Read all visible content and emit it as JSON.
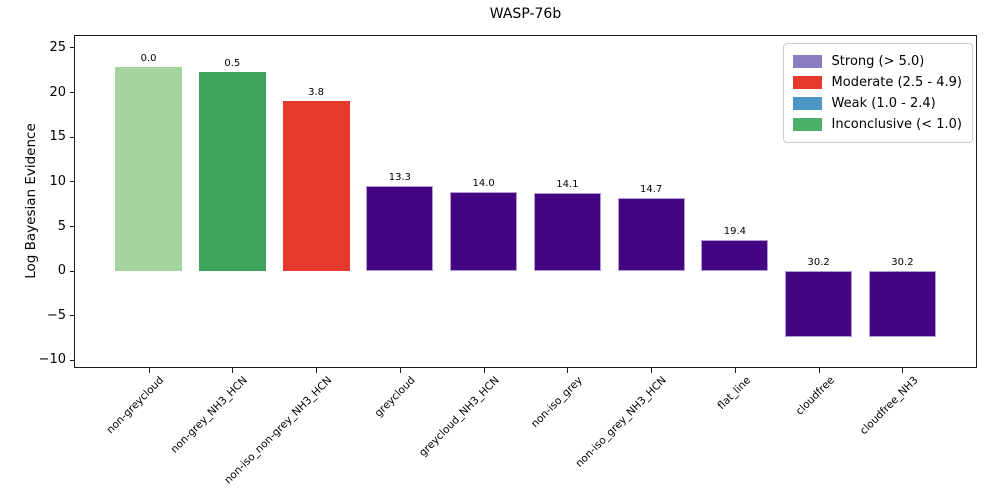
{
  "chart_data": {
    "type": "bar",
    "title": "WASP-76b",
    "xlabel": "",
    "ylabel": "Log Bayesian Evidence",
    "ylim": [
      -10.9,
      26.4
    ],
    "yticks": [
      25,
      20,
      15,
      10,
      5,
      0,
      -5,
      -10
    ],
    "grid": false,
    "categories": [
      "non-greycloud",
      "non-grey_NH3_HCN",
      "non-iso_non-grey_NH3_HCN",
      "greycloud",
      "greycloud_NH3_HCN",
      "non-iso_grey",
      "non-iso_grey_NH3_HCN",
      "flat_line",
      "cloudfree",
      "cloudfree_NH3"
    ],
    "values": [
      22.8,
      22.3,
      19.0,
      9.5,
      8.8,
      8.7,
      8.1,
      3.4,
      -7.4,
      -7.4
    ],
    "bar_labels": [
      "0.0",
      "0.5",
      "3.8",
      "13.3",
      "14.0",
      "14.1",
      "14.7",
      "19.4",
      "30.2",
      "30.2"
    ],
    "bar_colors": [
      "#a3d49e",
      "#3ea35c",
      "#e5392e",
      "#450582",
      "#450582",
      "#450582",
      "#450582",
      "#450582",
      "#450582",
      "#450582"
    ],
    "bar_edge_colors": [
      null,
      null,
      null,
      "#b19cd9",
      "#b19cd9",
      "#b19cd9",
      "#b19cd9",
      "#b19cd9",
      "#b19cd9",
      "#b19cd9"
    ],
    "legend": {
      "position": "upper right",
      "entries": [
        {
          "label": "Strong (> 5.0)",
          "color": "#8c7cc0"
        },
        {
          "label": "Moderate (2.5 - 4.9)",
          "color": "#e5392e"
        },
        {
          "label": "Weak (1.0 - 2.4)",
          "color": "#4d97c7"
        },
        {
          "label": "Inconclusive (< 1.0)",
          "color": "#4caf68"
        }
      ]
    }
  }
}
